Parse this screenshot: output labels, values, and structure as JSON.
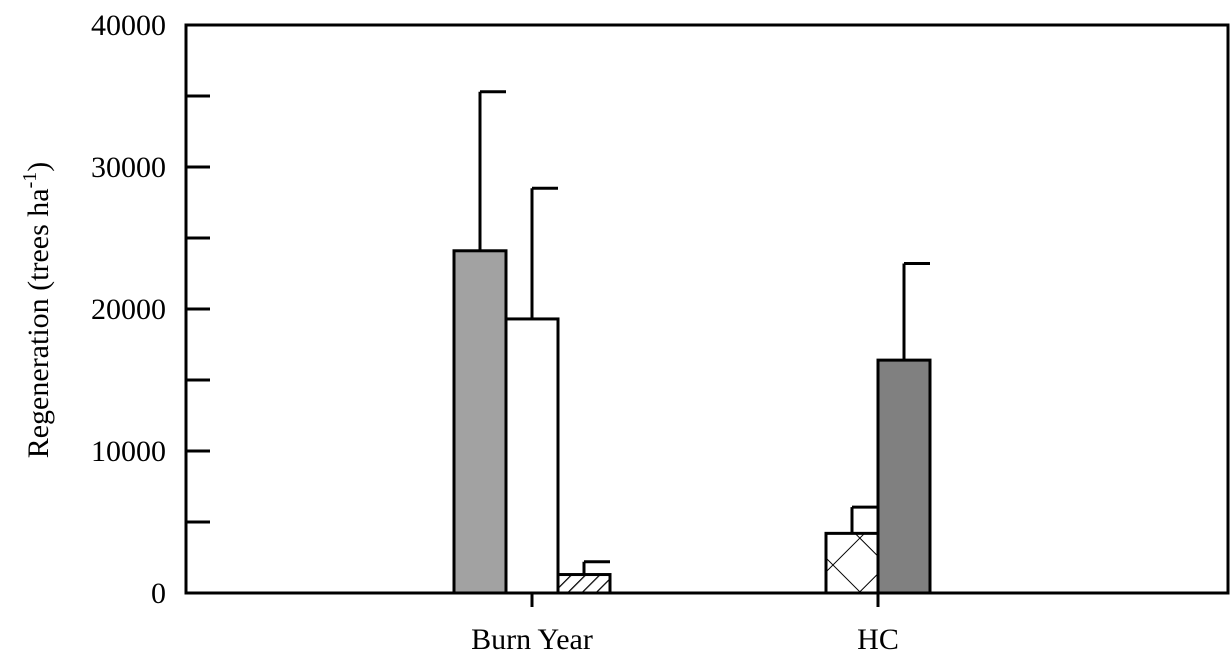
{
  "chart_data": {
    "type": "bar",
    "title": "",
    "xlabel": "",
    "ylabel": "Regeneration (trees ha",
    "ylabel_superscript": "-1",
    "ylabel_close": ")",
    "ylim": [
      0,
      40000
    ],
    "yticks": [
      0,
      10000,
      20000,
      30000,
      40000
    ],
    "yticks_labels": [
      "0",
      "10000",
      "20000",
      "30000",
      "40000"
    ],
    "yminor_ticks": [
      5000,
      15000,
      25000,
      35000
    ],
    "categories": [
      "Burn Year",
      "HC"
    ],
    "grid": false,
    "legend": "none",
    "groups": [
      {
        "category": "Burn Year",
        "bars": [
          {
            "value": 24100,
            "error": 11200,
            "fill": "medium-gray"
          },
          {
            "value": 19300,
            "error": 9200,
            "fill": "white"
          },
          {
            "value": 1300,
            "error": 900,
            "fill": "diagonal-hatch"
          }
        ]
      },
      {
        "category": "HC",
        "bars": [
          {
            "value": 4200,
            "error": 1850,
            "fill": "cross-hatch"
          },
          {
            "value": 16400,
            "error": 6800,
            "fill": "dark-gray"
          }
        ]
      }
    ],
    "colors": {
      "medium-gray": "#a2a2a2",
      "dark-gray": "#808080",
      "white": "#ffffff",
      "stroke": "#000000"
    }
  }
}
